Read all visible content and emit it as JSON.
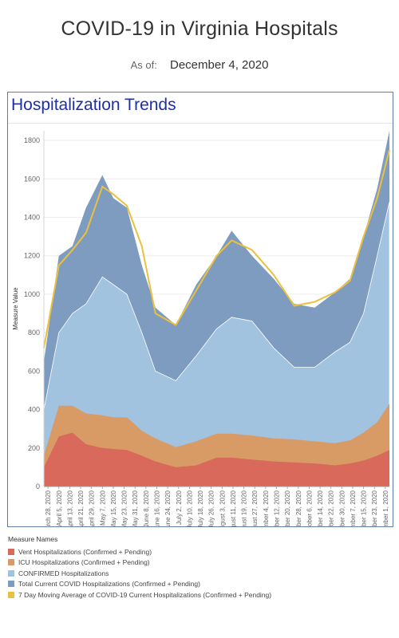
{
  "header": {
    "title": "COVID-19 in Virginia Hospitals",
    "as_of_label": "As of:",
    "as_of_date": "December 4, 2020"
  },
  "panel": {
    "title": "Hospitalization Trends"
  },
  "legend": {
    "title": "Measure Names",
    "items": [
      {
        "label": "Vent Hospitalizations (Confirmed + Pending)",
        "color": "#d9695a"
      },
      {
        "label": "ICU Hospitalizations (Confirmed + Pending)",
        "color": "#d89b66"
      },
      {
        "label": "CONFIRMED Hospitalizations",
        "color": "#a1c3e0"
      },
      {
        "label": "Total Current COVID Hospitalizations (Confirmed + Pending)",
        "color": "#7d9cbf"
      },
      {
        "label": "7 Day Moving Average of COVID-19 Current Hospitalizations (Confirmed + Pending)",
        "color": "#ebc03e"
      }
    ]
  },
  "chart_data": {
    "type": "area",
    "ylabel": "Measure Value",
    "xlabel": "",
    "ylim": [
      0,
      1850
    ],
    "yticks": [
      0,
      200,
      400,
      600,
      800,
      1000,
      1200,
      1400,
      1600,
      1800
    ],
    "x_start": "2020-03-25",
    "x_end": "2020-12-04",
    "x_tick_labels": [
      "March 28, 2020",
      "April 5, 2020",
      "April 13, 2020",
      "April 21, 2020",
      "April 29, 2020",
      "May 7, 2020",
      "May 15, 2020",
      "May 23, 2020",
      "May 31, 2020",
      "June 8, 2020",
      "June 16, 2020",
      "June 24, 2020",
      "July 2, 2020",
      "July 10, 2020",
      "July 18, 2020",
      "July 26, 2020",
      "August 3, 2020",
      "August 11, 2020",
      "August 19, 2020",
      "August 27, 2020",
      "September 4, 2020",
      "September 12, 2020",
      "September 20, 2020",
      "September 28, 2020",
      "October 6, 2020",
      "October 14, 2020",
      "October 22, 2020",
      "October 30, 2020",
      "November 7, 2020",
      "November 15, 2020",
      "November 23, 2020",
      "December 1, 2020"
    ],
    "x_tick_dates": [
      "2020-03-28",
      "2020-04-05",
      "2020-04-13",
      "2020-04-21",
      "2020-04-29",
      "2020-05-07",
      "2020-05-15",
      "2020-05-23",
      "2020-05-31",
      "2020-06-08",
      "2020-06-16",
      "2020-06-24",
      "2020-07-02",
      "2020-07-10",
      "2020-07-18",
      "2020-07-26",
      "2020-08-03",
      "2020-08-11",
      "2020-08-19",
      "2020-08-27",
      "2020-09-04",
      "2020-09-12",
      "2020-09-20",
      "2020-09-28",
      "2020-10-06",
      "2020-10-14",
      "2020-10-22",
      "2020-10-30",
      "2020-11-07",
      "2020-11-15",
      "2020-11-23",
      "2020-12-01"
    ],
    "dates": [
      "2020-03-25",
      "2020-04-05",
      "2020-04-15",
      "2020-04-25",
      "2020-05-07",
      "2020-05-15",
      "2020-05-25",
      "2020-06-05",
      "2020-06-15",
      "2020-06-30",
      "2020-07-15",
      "2020-07-30",
      "2020-08-10",
      "2020-08-25",
      "2020-09-10",
      "2020-09-25",
      "2020-10-10",
      "2020-10-25",
      "2020-11-05",
      "2020-11-15",
      "2020-11-25",
      "2020-12-04"
    ],
    "series": [
      {
        "name": "Vent Hospitalizations (Confirmed + Pending)",
        "color": "#d9695a",
        "values": [
          100,
          260,
          280,
          220,
          200,
          195,
          190,
          160,
          130,
          100,
          110,
          150,
          150,
          140,
          130,
          125,
          120,
          110,
          120,
          135,
          160,
          190
        ]
      },
      {
        "name": "ICU Hospitalizations (Confirmed + Pending)",
        "color": "#d89b66",
        "values": [
          160,
          420,
          420,
          380,
          370,
          360,
          360,
          290,
          250,
          205,
          235,
          275,
          275,
          265,
          250,
          245,
          235,
          225,
          240,
          280,
          335,
          430
        ]
      },
      {
        "name": "CONFIRMED Hospitalizations",
        "color": "#a1c3e0",
        "values": [
          400,
          800,
          900,
          950,
          1090,
          1050,
          1000,
          800,
          600,
          550,
          680,
          820,
          880,
          860,
          720,
          620,
          620,
          700,
          750,
          900,
          1200,
          1480
        ]
      },
      {
        "name": "Total Current COVID Hospitalizations (Confirmed + Pending)",
        "color": "#7d9cbf",
        "values": [
          650,
          1200,
          1250,
          1450,
          1620,
          1500,
          1450,
          1150,
          930,
          840,
          1050,
          1200,
          1330,
          1200,
          1080,
          950,
          930,
          1010,
          1080,
          1300,
          1550,
          1850
        ]
      },
      {
        "name": "7 Day Moving Average of COVID-19 Current Hospitalizations (Confirmed + Pending)",
        "color": "#ebc03e",
        "values": [
          720,
          1150,
          1230,
          1320,
          1560,
          1520,
          1460,
          1250,
          900,
          840,
          1020,
          1200,
          1280,
          1230,
          1100,
          940,
          960,
          1010,
          1070,
          1300,
          1500,
          1750
        ]
      }
    ]
  }
}
